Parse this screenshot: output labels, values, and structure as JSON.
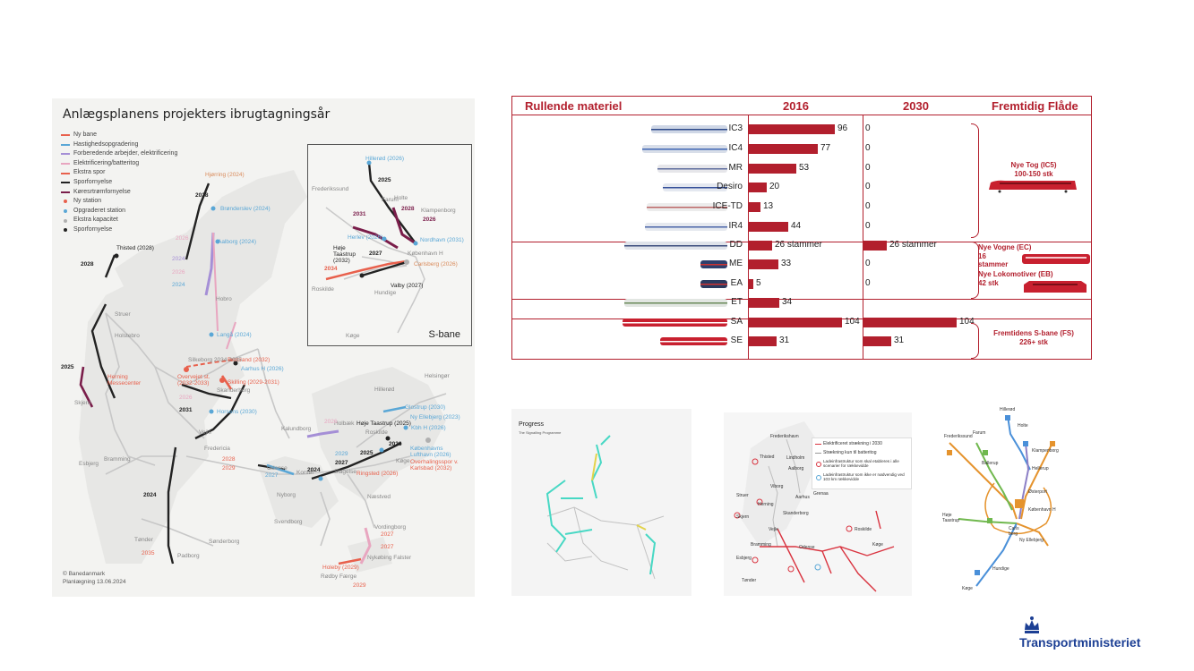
{
  "left_map": {
    "title": "Anlægsplanens projekters ibrugtagningsår",
    "legend": [
      {
        "label": "Ny bane",
        "color": "#e8604c",
        "kind": "line"
      },
      {
        "label": "Hastighedsopgradering",
        "color": "#5aa7d6",
        "kind": "line"
      },
      {
        "label": "Forberedende arbejder, elektrificering",
        "color": "#a58fd6",
        "kind": "line"
      },
      {
        "label": "Elektrificering/batteritog",
        "color": "#e8a6c0",
        "kind": "line"
      },
      {
        "label": "Ekstra spor",
        "color": "#e8604c",
        "kind": "line"
      },
      {
        "label": "Sporfornyelse",
        "color": "#222222",
        "kind": "line"
      },
      {
        "label": "Køresrtrømfornyelse",
        "color": "#7a1d4a",
        "kind": "line"
      },
      {
        "label": "Ny station",
        "color": "#e8604c",
        "kind": "dot"
      },
      {
        "label": "Opgraderet station",
        "color": "#5aa7d6",
        "kind": "dot"
      },
      {
        "label": "Ekstra kapacitet",
        "color": "#b0b0b0",
        "kind": "dot"
      },
      {
        "label": "Sporfornyelse",
        "color": "#222222",
        "kind": "dot"
      }
    ],
    "places": {
      "hjorring": "Hjørring (2024)",
      "bronderslev": "Brønderslev (2024)",
      "aalborg": "Aalborg (2024)",
      "thisted": "Thisted (2028)",
      "hobro": "Hobro",
      "langa": "Langå (2024)",
      "brabrand": "Brabrand (2032)",
      "aarhus": "Aarhus H (2026)",
      "silkeborg": "Silkeborg 2034-2035",
      "herning": "Herning Messecenter",
      "overvejet": "Overvejet st. (2032-2033)",
      "skilling": "Skilling (2029-2031)",
      "skanderborg": "Skanderborg",
      "horsens": "Horsens (2030)",
      "vejle": "Vejle",
      "fredericia": "Fredericia",
      "odense": "Odense",
      "nyborg": "Nyborg",
      "svendborg": "Svendborg",
      "padborg": "Padborg",
      "sonderborg": "Sønderborg",
      "tonder": "Tønder",
      "esbjerg": "Esbjerg",
      "bramming": "Bramming",
      "struer": "Struer",
      "holstebro": "Holstebro",
      "skjern": "Skjern",
      "kalundborg": "Kalundborg",
      "holbaek": "Holbæk",
      "roskilde": "Roskilde",
      "hoje": "Høje Taastrup (2025)",
      "kobenhavn": "Københavns Lufthavn (2026)",
      "koge": "Køge",
      "ringsted": "Ringsted (2026)",
      "naestved": "Næstved",
      "vordingborg": "Vordingborg",
      "nykobing": "Nykøbing Falster",
      "holeby": "Holeby (2029)",
      "rodby": "Rødby Færge",
      "slagelse": "Slagelse",
      "korsor": "Korsør",
      "helsingor": "Helsingør",
      "hillerod": "Hillerød",
      "gladsaxe": "Glostrup (2030)",
      "nyellebjerg": "Ny Ellebjerg (2023)",
      "kbh": "Kbh H (2026)",
      "overhaling": "Overhalingsspor v. Karlsbad (2032)"
    },
    "years": {
      "y2028a": "2028",
      "y2028b": "2028",
      "y2026a": "2026",
      "y2024a": "2024",
      "y2026b": "2026",
      "y2024b": "2024",
      "y2025": "2025",
      "y2026c": "2026",
      "y2031": "2031",
      "y2028c": "2028",
      "y2029": "2029",
      "y2027": "2027",
      "y2024c": "2024",
      "y2035": "2035",
      "y2024d": "2024",
      "y2029b": "2029",
      "y2025b": "2025",
      "y2026d": "2026",
      "y2027b": "2027",
      "y2027c": "2027",
      "y2029c": "2029",
      "y2027d": "2027",
      "y2026e": "2026"
    },
    "inset": {
      "title": "S-bane",
      "labels": {
        "hillerod": "Hillerød (2026)",
        "y2025": "2025",
        "holte": "Holte",
        "y2028": "2028",
        "y2031": "2031",
        "y2026": "2026",
        "frederikssund": "Frederikssund",
        "farum": "Farum",
        "klampenborg": "Klampenborg",
        "herlev": "Herlev (2026)",
        "nordhavn": "Nordhavn (2031)",
        "hoje": "Høje Taastrup (2032)",
        "y2027": "2027",
        "kbh": "København H",
        "y2034": "2034",
        "carlsberg": "Carlsberg (2026)",
        "roskilde": "Roskilde",
        "hundige": "Hundige",
        "valby": "Valby (2027)",
        "koge": "Køge"
      }
    },
    "credit": [
      "© Banedanmark",
      "Planlægning 13.06.2024"
    ]
  },
  "stock_table": {
    "headers": {
      "material": "Rullende materiel",
      "y2016": "2016",
      "y2030": "2030",
      "future": "Fremtidig Flåde"
    },
    "rows": [
      {
        "name": "IC3",
        "v2016": 96,
        "v2016_label": "96",
        "v2030": 0,
        "v2030_label": "0"
      },
      {
        "name": "IC4",
        "v2016": 77,
        "v2016_label": "77",
        "v2030": 0,
        "v2030_label": "0"
      },
      {
        "name": "MR",
        "v2016": 53,
        "v2016_label": "53",
        "v2030": 0,
        "v2030_label": "0"
      },
      {
        "name": "Desiro",
        "v2016": 20,
        "v2016_label": "20",
        "v2030": 0,
        "v2030_label": "0"
      },
      {
        "name": "ICE-TD",
        "v2016": 13,
        "v2016_label": "13",
        "v2030": 0,
        "v2030_label": "0"
      },
      {
        "name": "IR4",
        "v2016": 44,
        "v2016_label": "44",
        "v2030": 0,
        "v2030_label": "0"
      },
      {
        "name": "DD",
        "v2016": 26,
        "v2016_label": "26 stammer",
        "v2030": 26,
        "v2030_label": "26 stammer"
      },
      {
        "name": "ME",
        "v2016": 33,
        "v2016_label": "33",
        "v2030": 0,
        "v2030_label": "0"
      },
      {
        "name": "EA",
        "v2016": 5,
        "v2016_label": "5",
        "v2030": 0,
        "v2030_label": "0"
      },
      {
        "name": "ET",
        "v2016": 34,
        "v2016_label": "34",
        "v2030": null,
        "v2030_label": ""
      },
      {
        "name": "SA",
        "v2016": 104,
        "v2016_label": "104",
        "v2030": 104,
        "v2030_label": "104"
      },
      {
        "name": "SE",
        "v2016": 31,
        "v2016_label": "31",
        "v2030": 31,
        "v2030_label": "31"
      }
    ],
    "fleet": {
      "ic5": "Nye Tog (IC5)\n100-150 stk",
      "ec": "Nye Vogne (EC)\n16\nstammer",
      "eb": "Nye Lokomotiver (EB)\n42 stk",
      "fs": "Fremtidens S-bane (FS)\n226+ stk"
    },
    "accent": "#b21f2d"
  },
  "progress_map": {
    "title": "Progress",
    "subtitle": "The Signalling Programme"
  },
  "elec_map": {
    "legend": [
      "Elektrificeret strækning i 2030",
      "Strækning kun til batteritog",
      "Ladeinfrastruktur som skal etableres i alle scenarier for rækkevidde",
      "Ladeinfrastruktur som ikke er nødvendig ved 103 km rækkevidde"
    ],
    "places": {
      "frederikshavn": "Frederikshavn",
      "aalborg": "Aalborg",
      "viborg": "Viborg",
      "herning": "Herning",
      "aarhus": "Aarhus",
      "skanderborg": "Skanderborg",
      "vejle": "Vejle",
      "odense": "Odense",
      "roskilde": "Roskilde",
      "kege": "Køge",
      "thisted": "Thisted",
      "struer": "Struer",
      "skjern": "Skjern",
      "bramming": "Bramming",
      "esbjerg": "Esbjerg",
      "tonder": "Tønder",
      "lindholm": "Lindholm",
      "grenaa": "Grenaa"
    }
  },
  "sbane_map": {
    "labels": {
      "hillerod": "Hillerød",
      "holte": "Holte",
      "frederikssund": "Frederikssund",
      "farum": "Farum",
      "klampenborg": "Klampenborg",
      "ballerup": "Ballerup",
      "hellerup": "Hellerup",
      "osterport": "Østerport",
      "kbh": "København H",
      "hoje": "Høje Taastrup",
      "carlsberg": "Carls berg",
      "nyellebjerg": "Ny Ellebjerg",
      "hundige": "Hundige",
      "koge": "Køge"
    }
  },
  "logo": {
    "text": "Transportministeriet",
    "color": "#1c3f94"
  }
}
